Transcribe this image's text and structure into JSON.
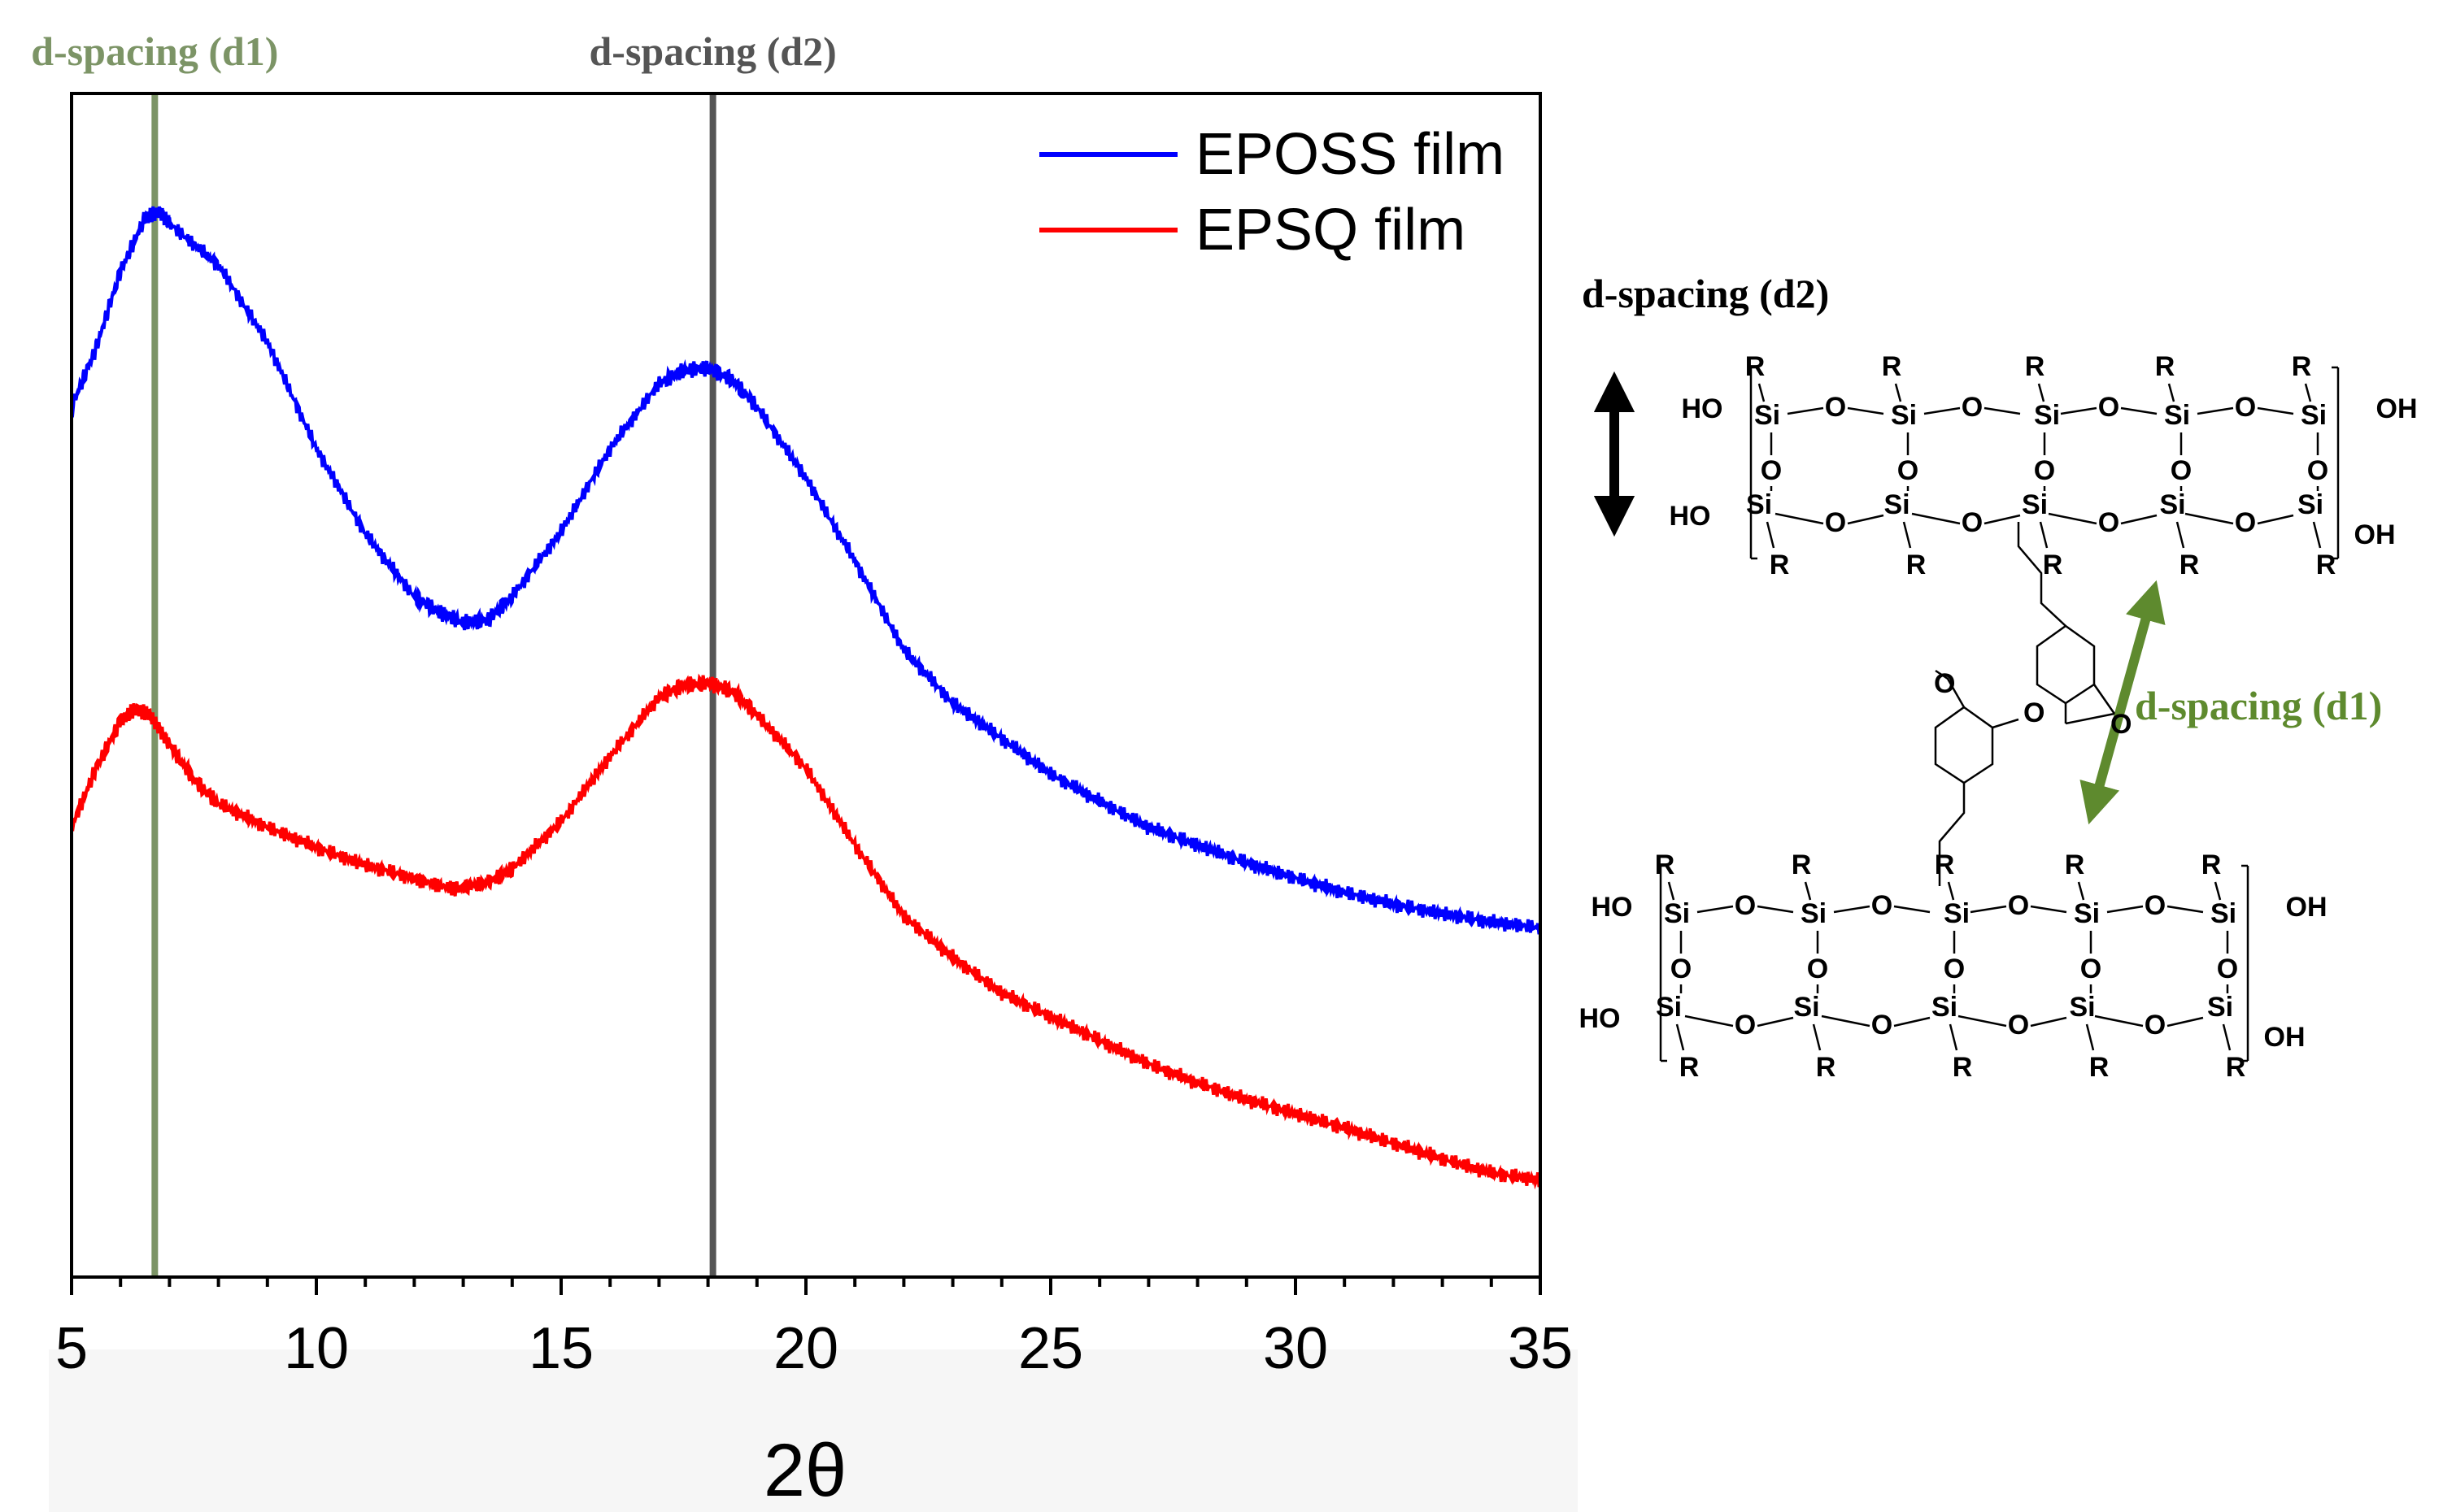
{
  "chart_data": {
    "type": "line",
    "title": "",
    "xlabel": "2θ",
    "ylabel": "",
    "xlim": [
      5,
      35
    ],
    "xticks": [
      5,
      10,
      15,
      20,
      25,
      30,
      35
    ],
    "yticks": [],
    "grid": false,
    "legend_position": "top-right",
    "series": [
      {
        "name": "EPOSS film",
        "color": "#0000ff",
        "x": [
          5,
          5.5,
          6,
          6.5,
          6.8,
          7,
          8,
          9,
          10,
          11,
          12,
          12.5,
          13,
          13.5,
          14,
          15,
          16,
          17,
          17.5,
          18,
          18.5,
          19,
          20,
          21,
          22,
          23,
          24,
          25,
          26,
          27,
          28,
          29,
          30,
          31,
          32,
          33,
          34,
          35
        ],
        "y": [
          0.735,
          0.785,
          0.85,
          0.895,
          0.9,
          0.89,
          0.855,
          0.79,
          0.7,
          0.628,
          0.575,
          0.562,
          0.553,
          0.555,
          0.575,
          0.63,
          0.7,
          0.755,
          0.766,
          0.768,
          0.758,
          0.735,
          0.675,
          0.605,
          0.53,
          0.485,
          0.455,
          0.425,
          0.402,
          0.38,
          0.365,
          0.35,
          0.337,
          0.325,
          0.315,
          0.307,
          0.3,
          0.295
        ]
      },
      {
        "name": "EPSQ film",
        "color": "#ff0000",
        "x": [
          5,
          5.5,
          6,
          6.3,
          6.6,
          7,
          7.5,
          8,
          9,
          10,
          11,
          12,
          12.8,
          13.5,
          14,
          15,
          16,
          17,
          17.5,
          18,
          18.5,
          19,
          20,
          21,
          22,
          23,
          24,
          25,
          26,
          27,
          28,
          29,
          30,
          31,
          32,
          33,
          34,
          35
        ],
        "y": [
          0.38,
          0.43,
          0.47,
          0.48,
          0.475,
          0.45,
          0.42,
          0.4,
          0.38,
          0.363,
          0.348,
          0.337,
          0.328,
          0.333,
          0.345,
          0.385,
          0.44,
          0.49,
          0.5,
          0.502,
          0.495,
          0.475,
          0.43,
          0.365,
          0.305,
          0.27,
          0.24,
          0.22,
          0.2,
          0.18,
          0.164,
          0.15,
          0.138,
          0.126,
          0.113,
          0.1,
          0.088,
          0.082
        ]
      }
    ],
    "reference_lines": [
      {
        "label": "d-spacing (d1)",
        "x": 6.7,
        "color": "#7c9466"
      },
      {
        "label": "d-spacing (d2)",
        "x": 18.1,
        "color": "#555555"
      }
    ]
  },
  "structure": {
    "d2_label": "d-spacing (d2)",
    "d1_label": "d-spacing (d1)",
    "arrow_color_d1": "#5e8a2e",
    "atoms": {
      "si": "Si",
      "o": "O",
      "r": "R",
      "ho": "HO",
      "oh": "OH"
    }
  }
}
